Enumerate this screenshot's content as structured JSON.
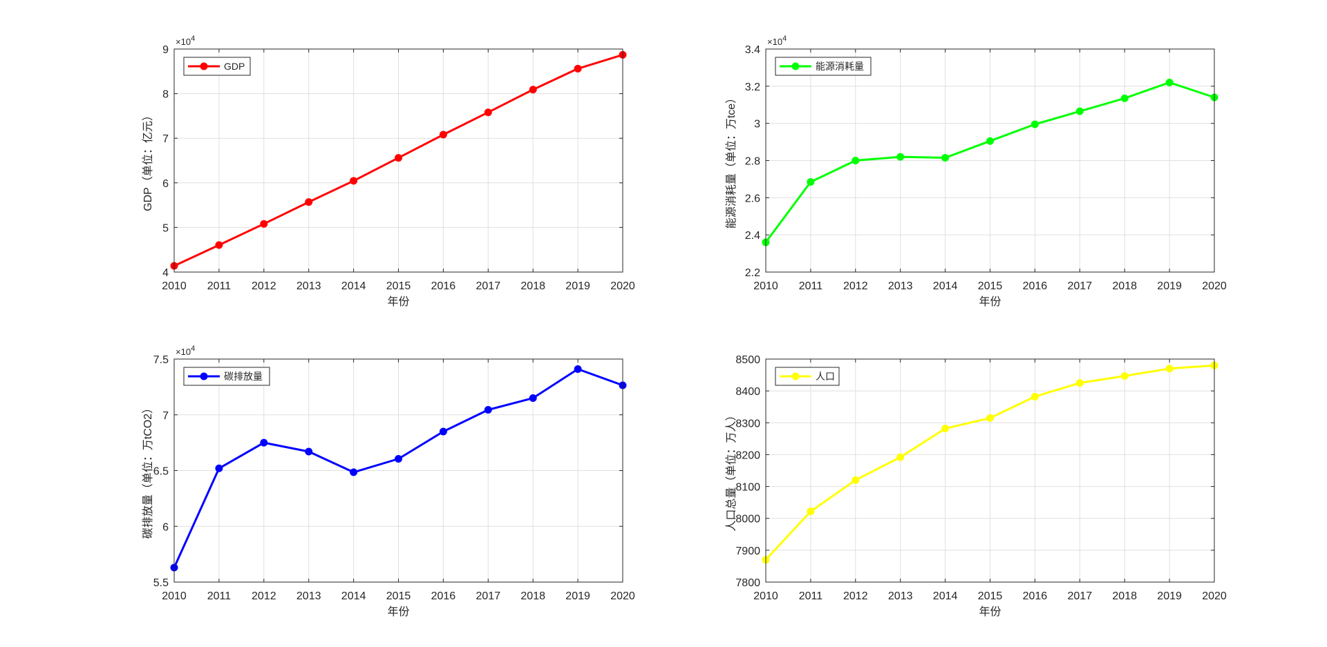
{
  "figure_background": "#ffffff",
  "chart_data": [
    {
      "type": "line",
      "x": [
        2010,
        2011,
        2012,
        2013,
        2014,
        2015,
        2016,
        2017,
        2018,
        2019,
        2020
      ],
      "series": [
        {
          "name": "GDP",
          "color": "#ff0000",
          "marker": "circle",
          "values": [
            41400,
            46050,
            50800,
            55700,
            60450,
            65600,
            70800,
            75800,
            80900,
            85600,
            88700
          ]
        }
      ],
      "xlabel": "年份",
      "ylabel": "GDP（单位：亿元）",
      "xlim": [
        2010,
        2020
      ],
      "ylim": [
        40000,
        90000
      ],
      "xticks": [
        2010,
        2011,
        2012,
        2013,
        2014,
        2015,
        2016,
        2017,
        2018,
        2019,
        2020
      ],
      "yticks": [
        40000,
        50000,
        60000,
        70000,
        80000,
        90000
      ],
      "ytick_labels": [
        "4",
        "5",
        "6",
        "7",
        "8",
        "9"
      ],
      "y_exponent_label": "×10",
      "y_exponent_power": "4",
      "grid": true,
      "legend_location": "top-left"
    },
    {
      "type": "line",
      "x": [
        2010,
        2011,
        2012,
        2013,
        2014,
        2015,
        2016,
        2017,
        2018,
        2019,
        2020
      ],
      "series": [
        {
          "name": "能源消耗量",
          "color": "#00ff00",
          "marker": "circle",
          "values": [
            23600,
            26850,
            28000,
            28200,
            28150,
            29050,
            29950,
            30650,
            31350,
            32200,
            31400
          ]
        }
      ],
      "xlabel": "年份",
      "ylabel": "能源消耗量（单位：万tce）",
      "xlim": [
        2010,
        2020
      ],
      "ylim": [
        22000,
        34000
      ],
      "xticks": [
        2010,
        2011,
        2012,
        2013,
        2014,
        2015,
        2016,
        2017,
        2018,
        2019,
        2020
      ],
      "yticks": [
        22000,
        24000,
        26000,
        28000,
        30000,
        32000,
        34000
      ],
      "ytick_labels": [
        "2.2",
        "2.4",
        "2.6",
        "2.8",
        "3",
        "3.2",
        "3.4"
      ],
      "y_exponent_label": "×10",
      "y_exponent_power": "4",
      "grid": true,
      "legend_location": "top-left"
    },
    {
      "type": "line",
      "x": [
        2010,
        2011,
        2012,
        2013,
        2014,
        2015,
        2016,
        2017,
        2018,
        2019,
        2020
      ],
      "series": [
        {
          "name": "碳排放量",
          "color": "#0000ff",
          "marker": "circle",
          "values": [
            56300,
            65200,
            67500,
            66700,
            64850,
            66050,
            68500,
            70450,
            71500,
            74100,
            72650
          ]
        }
      ],
      "xlabel": "年份",
      "ylabel": "碳排放量（单位：万tCO2）",
      "xlim": [
        2010,
        2020
      ],
      "ylim": [
        55000,
        75000
      ],
      "xticks": [
        2010,
        2011,
        2012,
        2013,
        2014,
        2015,
        2016,
        2017,
        2018,
        2019,
        2020
      ],
      "yticks": [
        55000,
        60000,
        65000,
        70000,
        75000
      ],
      "ytick_labels": [
        "5.5",
        "6",
        "6.5",
        "7",
        "7.5"
      ],
      "y_exponent_label": "×10",
      "y_exponent_power": "4",
      "grid": true,
      "legend_location": "top-left"
    },
    {
      "type": "line",
      "x": [
        2010,
        2011,
        2012,
        2013,
        2014,
        2015,
        2016,
        2017,
        2018,
        2019,
        2020
      ],
      "series": [
        {
          "name": "人口",
          "color": "#ffff00",
          "marker": "circle",
          "values": [
            7870,
            8022,
            8120,
            8192,
            8282,
            8315,
            8382,
            8425,
            8447,
            8470,
            8480
          ]
        }
      ],
      "xlabel": "年份",
      "ylabel": "人口总量（单位：万人）",
      "xlim": [
        2010,
        2020
      ],
      "ylim": [
        7800,
        8500
      ],
      "xticks": [
        2010,
        2011,
        2012,
        2013,
        2014,
        2015,
        2016,
        2017,
        2018,
        2019,
        2020
      ],
      "yticks": [
        7800,
        7900,
        8000,
        8100,
        8200,
        8300,
        8400,
        8500
      ],
      "ytick_labels": [
        "7800",
        "7900",
        "8000",
        "8100",
        "8200",
        "8300",
        "8400",
        "8500"
      ],
      "y_exponent_label": "",
      "y_exponent_power": "",
      "grid": true,
      "legend_location": "top-left"
    }
  ]
}
